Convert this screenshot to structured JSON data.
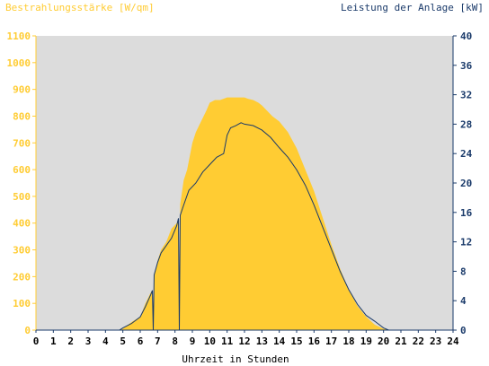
{
  "chart_data": {
    "type": "area",
    "left_axis_title": "Bestrahlungsstärke [W/qm]",
    "right_axis_title": "Leistung der Anlage [kW]",
    "xlabel": "Uhrzeit in Stunden",
    "x_ticks": [
      "0",
      "1",
      "2",
      "3",
      "4",
      "5",
      "6",
      "7",
      "8",
      "9",
      "10",
      "11",
      "12",
      "13",
      "14",
      "15",
      "16",
      "17",
      "18",
      "19",
      "20",
      "21",
      "22",
      "23",
      "24"
    ],
    "y_left_ticks": [
      "0",
      "100",
      "200",
      "300",
      "400",
      "500",
      "600",
      "700",
      "800",
      "900",
      "1000",
      "1100"
    ],
    "y_right_ticks": [
      "0",
      "4",
      "8",
      "12",
      "16",
      "20",
      "24",
      "28",
      "32",
      "36",
      "40"
    ],
    "xlim": [
      0,
      24
    ],
    "ylim_left": [
      0,
      1100
    ],
    "ylim_right": [
      0,
      40
    ],
    "grid": false,
    "colors": {
      "plot_background": "#dcdcdc",
      "irradiance_fill": "#ffcc33",
      "power_line": "#1a3a6a",
      "left_axis_text": "#ffcc33",
      "right_axis_text": "#1a3a6a",
      "bottom_axis_text": "#000000"
    },
    "series": [
      {
        "name": "Bestrahlungsstärke [W/qm]",
        "axis": "left",
        "style": "area",
        "x": [
          0,
          4.8,
          5,
          5.5,
          6,
          6.3,
          6.6,
          6.7,
          6.75,
          6.8,
          7,
          7.2,
          7.5,
          7.8,
          8.1,
          8.2,
          8.25,
          8.3,
          8.5,
          8.7,
          9,
          9.2,
          9.5,
          9.8,
          10,
          10.3,
          10.6,
          11,
          11.3,
          11.6,
          11.8,
          12,
          12.2,
          12.5,
          12.8,
          13,
          13.3,
          13.6,
          14,
          14.5,
          15,
          15.5,
          16,
          16.5,
          17,
          17.5,
          18,
          18.5,
          19,
          19.5,
          20,
          20.3,
          20.5,
          24
        ],
        "y": [
          0,
          0,
          5,
          30,
          50,
          100,
          140,
          150,
          0,
          200,
          260,
          300,
          330,
          380,
          400,
          420,
          0,
          470,
          560,
          600,
          700,
          740,
          780,
          820,
          850,
          860,
          860,
          870,
          870,
          870,
          870,
          870,
          865,
          860,
          850,
          840,
          820,
          800,
          780,
          740,
          680,
          600,
          520,
          420,
          320,
          230,
          150,
          90,
          50,
          20,
          5,
          0,
          0,
          0
        ]
      },
      {
        "name": "Leistung der Anlage [kW]",
        "axis": "right",
        "style": "line",
        "x": [
          0,
          4.8,
          5,
          5.5,
          6,
          6.3,
          6.6,
          6.7,
          6.75,
          6.8,
          7,
          7.2,
          7.5,
          7.8,
          8.1,
          8.2,
          8.25,
          8.3,
          8.5,
          8.8,
          9.2,
          9.6,
          10,
          10.4,
          10.8,
          11,
          11.2,
          11.5,
          11.8,
          12,
          12.5,
          13,
          13.5,
          14,
          14.5,
          15,
          15.5,
          16,
          16.5,
          17,
          17.5,
          18,
          18.5,
          19,
          19.5,
          20,
          20.3,
          20.5,
          24
        ],
        "y": [
          0,
          0,
          0.3,
          0.9,
          1.8,
          3.2,
          4.8,
          5.4,
          0,
          7.5,
          9.2,
          10.5,
          11.5,
          12.5,
          14.2,
          15.2,
          0,
          15.6,
          17,
          19,
          20,
          21.5,
          22.5,
          23.5,
          24,
          26.5,
          27.5,
          27.8,
          28.2,
          28,
          27.8,
          27.2,
          26.2,
          24.8,
          23.5,
          21.8,
          19.7,
          17,
          14,
          11,
          8,
          5.5,
          3.5,
          2,
          1.2,
          0.3,
          0,
          0,
          0
        ]
      }
    ]
  }
}
